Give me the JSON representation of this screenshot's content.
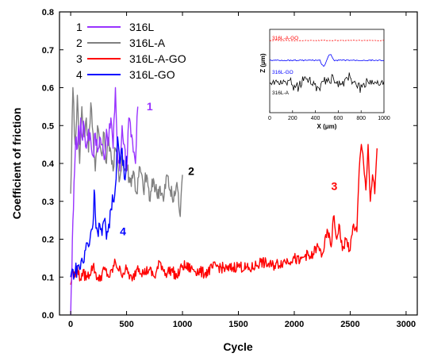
{
  "chart_data": {
    "type": "line",
    "xlabel": "Cycle",
    "ylabel": "Coefficient of friction",
    "xlim": [
      -100,
      3100
    ],
    "ylim": [
      0.0,
      0.8
    ],
    "x_ticks": [
      "0",
      "500",
      "1000",
      "1500",
      "2000",
      "2500",
      "3000"
    ],
    "y_ticks": [
      "0.0",
      "0.1",
      "0.2",
      "0.3",
      "0.4",
      "0.5",
      "0.6",
      "0.7",
      "0.8"
    ],
    "legend": [
      {
        "number": "1",
        "name": "316L",
        "color": "#9933ff"
      },
      {
        "number": "2",
        "name": "316L-A",
        "color": "#808080"
      },
      {
        "number": "3",
        "name": "316L-A-GO",
        "color": "#ff0000"
      },
      {
        "number": "4",
        "name": "316L-GO",
        "color": "#0000ff"
      }
    ],
    "series": [
      {
        "name": "316L",
        "number": "1",
        "color": "#9933ff",
        "x": [
          0,
          10,
          20,
          30,
          40,
          50,
          60,
          70,
          80,
          90,
          100,
          120,
          140,
          160,
          180,
          200,
          220,
          240,
          260,
          280,
          300,
          320,
          340,
          360,
          380,
          400,
          420,
          440,
          460,
          480,
          500,
          520,
          540,
          560,
          580,
          600
        ],
        "y": [
          0.0,
          0.1,
          0.25,
          0.35,
          0.42,
          0.47,
          0.44,
          0.5,
          0.45,
          0.52,
          0.47,
          0.5,
          0.44,
          0.49,
          0.46,
          0.42,
          0.48,
          0.43,
          0.47,
          0.45,
          0.41,
          0.49,
          0.46,
          0.52,
          0.44,
          0.6,
          0.42,
          0.38,
          0.5,
          0.45,
          0.38,
          0.52,
          0.47,
          0.43,
          0.4,
          0.55
        ]
      },
      {
        "name": "316L-A",
        "number": "2",
        "color": "#808080",
        "x": [
          0,
          20,
          40,
          60,
          80,
          100,
          120,
          140,
          160,
          180,
          200,
          220,
          240,
          260,
          280,
          300,
          320,
          340,
          360,
          380,
          400,
          420,
          440,
          460,
          480,
          500,
          530,
          560,
          590,
          620,
          650,
          680,
          710,
          740,
          770,
          800,
          830,
          860,
          890,
          920,
          950,
          980,
          1000
        ],
        "y": [
          0.32,
          0.6,
          0.45,
          0.58,
          0.4,
          0.55,
          0.47,
          0.52,
          0.43,
          0.56,
          0.48,
          0.38,
          0.5,
          0.45,
          0.42,
          0.48,
          0.4,
          0.47,
          0.43,
          0.38,
          0.44,
          0.4,
          0.36,
          0.42,
          0.38,
          0.4,
          0.35,
          0.38,
          0.32,
          0.39,
          0.33,
          0.37,
          0.3,
          0.36,
          0.32,
          0.34,
          0.3,
          0.37,
          0.33,
          0.3,
          0.35,
          0.26,
          0.37
        ]
      },
      {
        "name": "316L-A-GO",
        "number": "3",
        "color": "#ff0000",
        "x": [
          0,
          20,
          40,
          60,
          80,
          100,
          150,
          200,
          250,
          300,
          350,
          400,
          450,
          500,
          550,
          600,
          650,
          700,
          750,
          800,
          850,
          900,
          950,
          1000,
          1100,
          1200,
          1300,
          1400,
          1500,
          1600,
          1700,
          1800,
          1900,
          2000,
          2050,
          2100,
          2150,
          2200,
          2250,
          2300,
          2330,
          2350,
          2380,
          2400,
          2430,
          2460,
          2500,
          2530,
          2560,
          2580,
          2600,
          2620,
          2640,
          2660,
          2680,
          2700,
          2720,
          2740
        ],
        "y": [
          0.08,
          0.12,
          0.1,
          0.13,
          0.09,
          0.11,
          0.1,
          0.13,
          0.09,
          0.12,
          0.1,
          0.14,
          0.11,
          0.12,
          0.09,
          0.13,
          0.11,
          0.12,
          0.1,
          0.14,
          0.11,
          0.12,
          0.1,
          0.13,
          0.12,
          0.11,
          0.13,
          0.12,
          0.13,
          0.12,
          0.14,
          0.13,
          0.14,
          0.15,
          0.14,
          0.16,
          0.15,
          0.18,
          0.16,
          0.22,
          0.18,
          0.26,
          0.2,
          0.24,
          0.17,
          0.2,
          0.17,
          0.24,
          0.22,
          0.38,
          0.45,
          0.4,
          0.33,
          0.45,
          0.3,
          0.37,
          0.32,
          0.44
        ]
      },
      {
        "name": "316L-GO",
        "number": "4",
        "color": "#0000ff",
        "x": [
          0,
          20,
          40,
          60,
          80,
          100,
          120,
          140,
          160,
          180,
          200,
          210,
          220,
          240,
          260,
          280,
          300,
          320,
          340,
          360,
          380,
          400,
          420,
          440,
          460,
          480,
          500
        ],
        "y": [
          0.1,
          0.12,
          0.11,
          0.13,
          0.12,
          0.15,
          0.14,
          0.19,
          0.18,
          0.22,
          0.24,
          0.33,
          0.27,
          0.22,
          0.24,
          0.21,
          0.25,
          0.2,
          0.24,
          0.28,
          0.3,
          0.34,
          0.47,
          0.4,
          0.44,
          0.36,
          0.42
        ]
      }
    ],
    "curve_labels": [
      {
        "text": "1",
        "x": 680,
        "y": 0.54,
        "color": "#9933ff"
      },
      {
        "text": "2",
        "x": 1050,
        "y": 0.37,
        "color": "#000000"
      },
      {
        "text": "3",
        "x": 2330,
        "y": 0.33,
        "color": "#ff0000"
      },
      {
        "text": "4",
        "x": 440,
        "y": 0.21,
        "color": "#0000ff"
      }
    ],
    "inset": {
      "xlabel": "X (μm)",
      "ylabel": "Z (μm)",
      "x_ticks": [
        "0",
        "200",
        "400",
        "600",
        "800",
        "1000"
      ],
      "xlim": [
        0,
        1000
      ],
      "series_labels": [
        {
          "name": "316L-A-GO",
          "color": "#ff0000"
        },
        {
          "name": "316L-GO",
          "color": "#0000ff"
        },
        {
          "name": "316L-A",
          "color": "#000000"
        }
      ]
    }
  }
}
